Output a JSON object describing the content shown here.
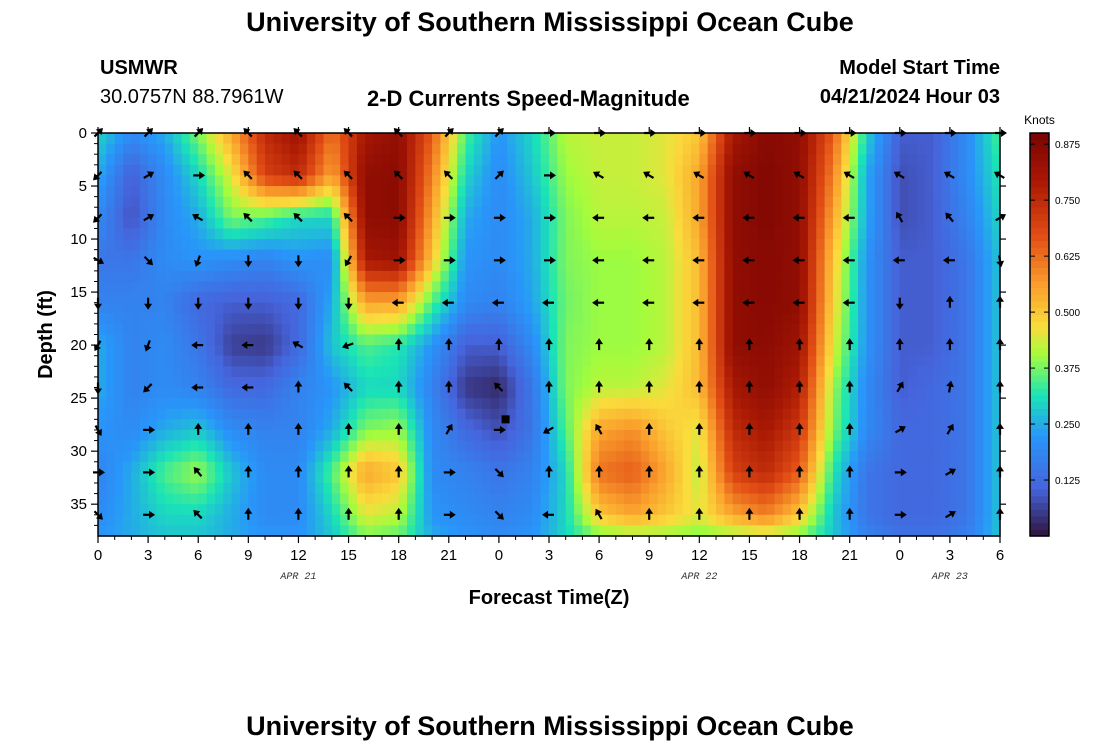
{
  "header": {
    "title": "University of Southern Mississippi Ocean Cube",
    "station_id": "USMWR",
    "coords": "30.0757N  88.7961W",
    "plot_title": "2-D Currents Speed-Magnitude",
    "model_start_label": "Model Start Time",
    "model_start_value": "04/21/2024 Hour 03"
  },
  "footer": {
    "title": "University of Southern Mississippi Ocean Cube"
  },
  "chart_data": {
    "type": "heatmap",
    "title": "2-D Currents Speed-Magnitude",
    "xlabel": "Forecast Time(Z)",
    "ylabel": "Depth (ft)",
    "x_unit": "hours since 04/21/2024 00Z",
    "xlim": [
      0,
      54
    ],
    "ylim": [
      0,
      38
    ],
    "x_ticks": [
      0,
      3,
      6,
      9,
      12,
      15,
      18,
      21,
      24,
      27,
      30,
      33,
      36,
      39,
      42,
      45,
      48,
      51,
      54
    ],
    "x_tick_labels": [
      "0",
      "3",
      "6",
      "9",
      "12",
      "15",
      "18",
      "21",
      "0",
      "3",
      "6",
      "9",
      "12",
      "15",
      "18",
      "21",
      "0",
      "3",
      "6"
    ],
    "y_ticks": [
      0,
      5,
      10,
      15,
      20,
      25,
      30,
      35
    ],
    "y_tick_labels": [
      "0",
      "5",
      "10",
      "15",
      "20",
      "25",
      "30",
      "35"
    ],
    "date_labels": [
      {
        "x": 12,
        "text": "APR 21"
      },
      {
        "x": 36,
        "text": "APR 22"
      },
      {
        "x": 51,
        "text": "APR 23"
      }
    ],
    "colorbar": {
      "unit": "Knots",
      "min": 0.0,
      "max": 0.9,
      "ticks": [
        0.125,
        0.25,
        0.375,
        0.5,
        0.625,
        0.75,
        0.875
      ],
      "tick_labels": [
        "0.125",
        "0.250",
        "0.375",
        "0.500",
        "0.625",
        "0.750",
        "0.875"
      ]
    },
    "speed_grid": {
      "hours": [
        0,
        2,
        4,
        6,
        8,
        10,
        12,
        14,
        16,
        18,
        20,
        22,
        24,
        26,
        28,
        30,
        32,
        34,
        36,
        38,
        40,
        42,
        44,
        46,
        48,
        50,
        52,
        54
      ],
      "depths": [
        0,
        4,
        8,
        12,
        16,
        20,
        24,
        28,
        32,
        36,
        38
      ],
      "values": [
        [
          0.3,
          0.2,
          0.25,
          0.38,
          0.55,
          0.75,
          0.82,
          0.62,
          0.8,
          0.85,
          0.65,
          0.35,
          0.22,
          0.3,
          0.42,
          0.43,
          0.43,
          0.45,
          0.5,
          0.8,
          0.87,
          0.85,
          0.65,
          0.3,
          0.1,
          0.1,
          0.2,
          0.35
        ],
        [
          0.25,
          0.1,
          0.2,
          0.3,
          0.45,
          0.7,
          0.75,
          0.55,
          0.85,
          0.86,
          0.6,
          0.3,
          0.2,
          0.28,
          0.4,
          0.43,
          0.43,
          0.45,
          0.55,
          0.85,
          0.88,
          0.85,
          0.6,
          0.25,
          0.08,
          0.1,
          0.2,
          0.32
        ],
        [
          0.2,
          0.08,
          0.2,
          0.25,
          0.38,
          0.35,
          0.3,
          0.3,
          0.85,
          0.86,
          0.55,
          0.25,
          0.2,
          0.25,
          0.38,
          0.42,
          0.42,
          0.43,
          0.55,
          0.85,
          0.88,
          0.85,
          0.55,
          0.25,
          0.08,
          0.1,
          0.18,
          0.3
        ],
        [
          0.15,
          0.15,
          0.2,
          0.22,
          0.2,
          0.18,
          0.22,
          0.2,
          0.8,
          0.82,
          0.5,
          0.22,
          0.2,
          0.25,
          0.38,
          0.4,
          0.4,
          0.42,
          0.52,
          0.85,
          0.87,
          0.85,
          0.5,
          0.22,
          0.1,
          0.1,
          0.15,
          0.28
        ],
        [
          0.18,
          0.18,
          0.18,
          0.12,
          0.1,
          0.1,
          0.12,
          0.25,
          0.55,
          0.55,
          0.35,
          0.2,
          0.18,
          0.24,
          0.37,
          0.4,
          0.4,
          0.42,
          0.52,
          0.85,
          0.87,
          0.85,
          0.48,
          0.22,
          0.1,
          0.1,
          0.15,
          0.28
        ],
        [
          0.25,
          0.18,
          0.2,
          0.15,
          0.06,
          0.05,
          0.12,
          0.28,
          0.35,
          0.32,
          0.22,
          0.1,
          0.1,
          0.2,
          0.38,
          0.4,
          0.4,
          0.42,
          0.52,
          0.85,
          0.86,
          0.82,
          0.45,
          0.22,
          0.1,
          0.1,
          0.15,
          0.28
        ],
        [
          0.25,
          0.18,
          0.2,
          0.18,
          0.12,
          0.12,
          0.18,
          0.22,
          0.3,
          0.3,
          0.18,
          0.05,
          0.03,
          0.15,
          0.38,
          0.42,
          0.42,
          0.45,
          0.52,
          0.8,
          0.85,
          0.78,
          0.4,
          0.2,
          0.1,
          0.12,
          0.15,
          0.28
        ],
        [
          0.22,
          0.2,
          0.25,
          0.28,
          0.2,
          0.18,
          0.18,
          0.25,
          0.38,
          0.4,
          0.2,
          0.12,
          0.08,
          0.15,
          0.35,
          0.55,
          0.58,
          0.5,
          0.45,
          0.75,
          0.8,
          0.72,
          0.38,
          0.2,
          0.12,
          0.12,
          0.15,
          0.28
        ],
        [
          0.18,
          0.25,
          0.35,
          0.4,
          0.28,
          0.2,
          0.2,
          0.35,
          0.55,
          0.5,
          0.2,
          0.18,
          0.15,
          0.18,
          0.3,
          0.62,
          0.65,
          0.55,
          0.42,
          0.7,
          0.75,
          0.65,
          0.32,
          0.15,
          0.12,
          0.12,
          0.15,
          0.28
        ],
        [
          0.2,
          0.25,
          0.3,
          0.3,
          0.25,
          0.2,
          0.2,
          0.3,
          0.45,
          0.42,
          0.22,
          0.2,
          0.18,
          0.2,
          0.3,
          0.5,
          0.55,
          0.5,
          0.45,
          0.55,
          0.6,
          0.5,
          0.28,
          0.15,
          0.12,
          0.12,
          0.15,
          0.28
        ],
        [
          0.22,
          0.25,
          0.28,
          0.28,
          0.25,
          0.22,
          0.22,
          0.28,
          0.38,
          0.36,
          0.25,
          0.22,
          0.2,
          0.22,
          0.3,
          0.38,
          0.4,
          0.4,
          0.38,
          0.4,
          0.42,
          0.38,
          0.28,
          0.18,
          0.14,
          0.14,
          0.17,
          0.28
        ]
      ]
    },
    "vectors": {
      "hours": [
        0,
        3,
        6,
        9,
        12,
        15,
        18,
        21,
        24,
        27,
        30,
        33,
        36,
        39,
        42,
        45,
        48,
        51,
        54
      ],
      "depths": [
        0,
        4,
        8,
        12,
        16,
        20,
        24,
        28,
        32,
        36
      ],
      "dirs_deg": [
        [
          45,
          45,
          45,
          135,
          135,
          135,
          135,
          45,
          45,
          0,
          0,
          0,
          0,
          0,
          0,
          0,
          0,
          0,
          0
        ],
        [
          225,
          30,
          0,
          135,
          135,
          135,
          135,
          135,
          45,
          0,
          150,
          150,
          150,
          150,
          150,
          150,
          150,
          150,
          150
        ],
        [
          225,
          30,
          150,
          135,
          135,
          135,
          0,
          0,
          0,
          0,
          180,
          180,
          180,
          180,
          180,
          180,
          120,
          130,
          30
        ],
        [
          330,
          315,
          250,
          270,
          270,
          240,
          0,
          0,
          0,
          0,
          180,
          180,
          180,
          180,
          180,
          180,
          180,
          180,
          280
        ],
        [
          270,
          270,
          270,
          270,
          270,
          270,
          180,
          180,
          180,
          180,
          180,
          180,
          180,
          180,
          180,
          180,
          270,
          90,
          90
        ],
        [
          240,
          250,
          180,
          180,
          150,
          200,
          90,
          90,
          90,
          90,
          90,
          90,
          90,
          90,
          90,
          90,
          90,
          90,
          90
        ],
        [
          270,
          225,
          180,
          180,
          90,
          135,
          90,
          90,
          135,
          90,
          90,
          90,
          90,
          90,
          90,
          90,
          60,
          80,
          90
        ],
        [
          300,
          0,
          90,
          90,
          90,
          90,
          90,
          60,
          0,
          210,
          120,
          90,
          90,
          90,
          90,
          90,
          30,
          60,
          90
        ],
        [
          0,
          0,
          130,
          90,
          90,
          90,
          90,
          0,
          315,
          90,
          90,
          90,
          90,
          90,
          90,
          90,
          0,
          30,
          90
        ],
        [
          315,
          0,
          135,
          90,
          90,
          90,
          90,
          0,
          315,
          180,
          120,
          90,
          90,
          90,
          90,
          90,
          0,
          30,
          90
        ]
      ]
    }
  }
}
